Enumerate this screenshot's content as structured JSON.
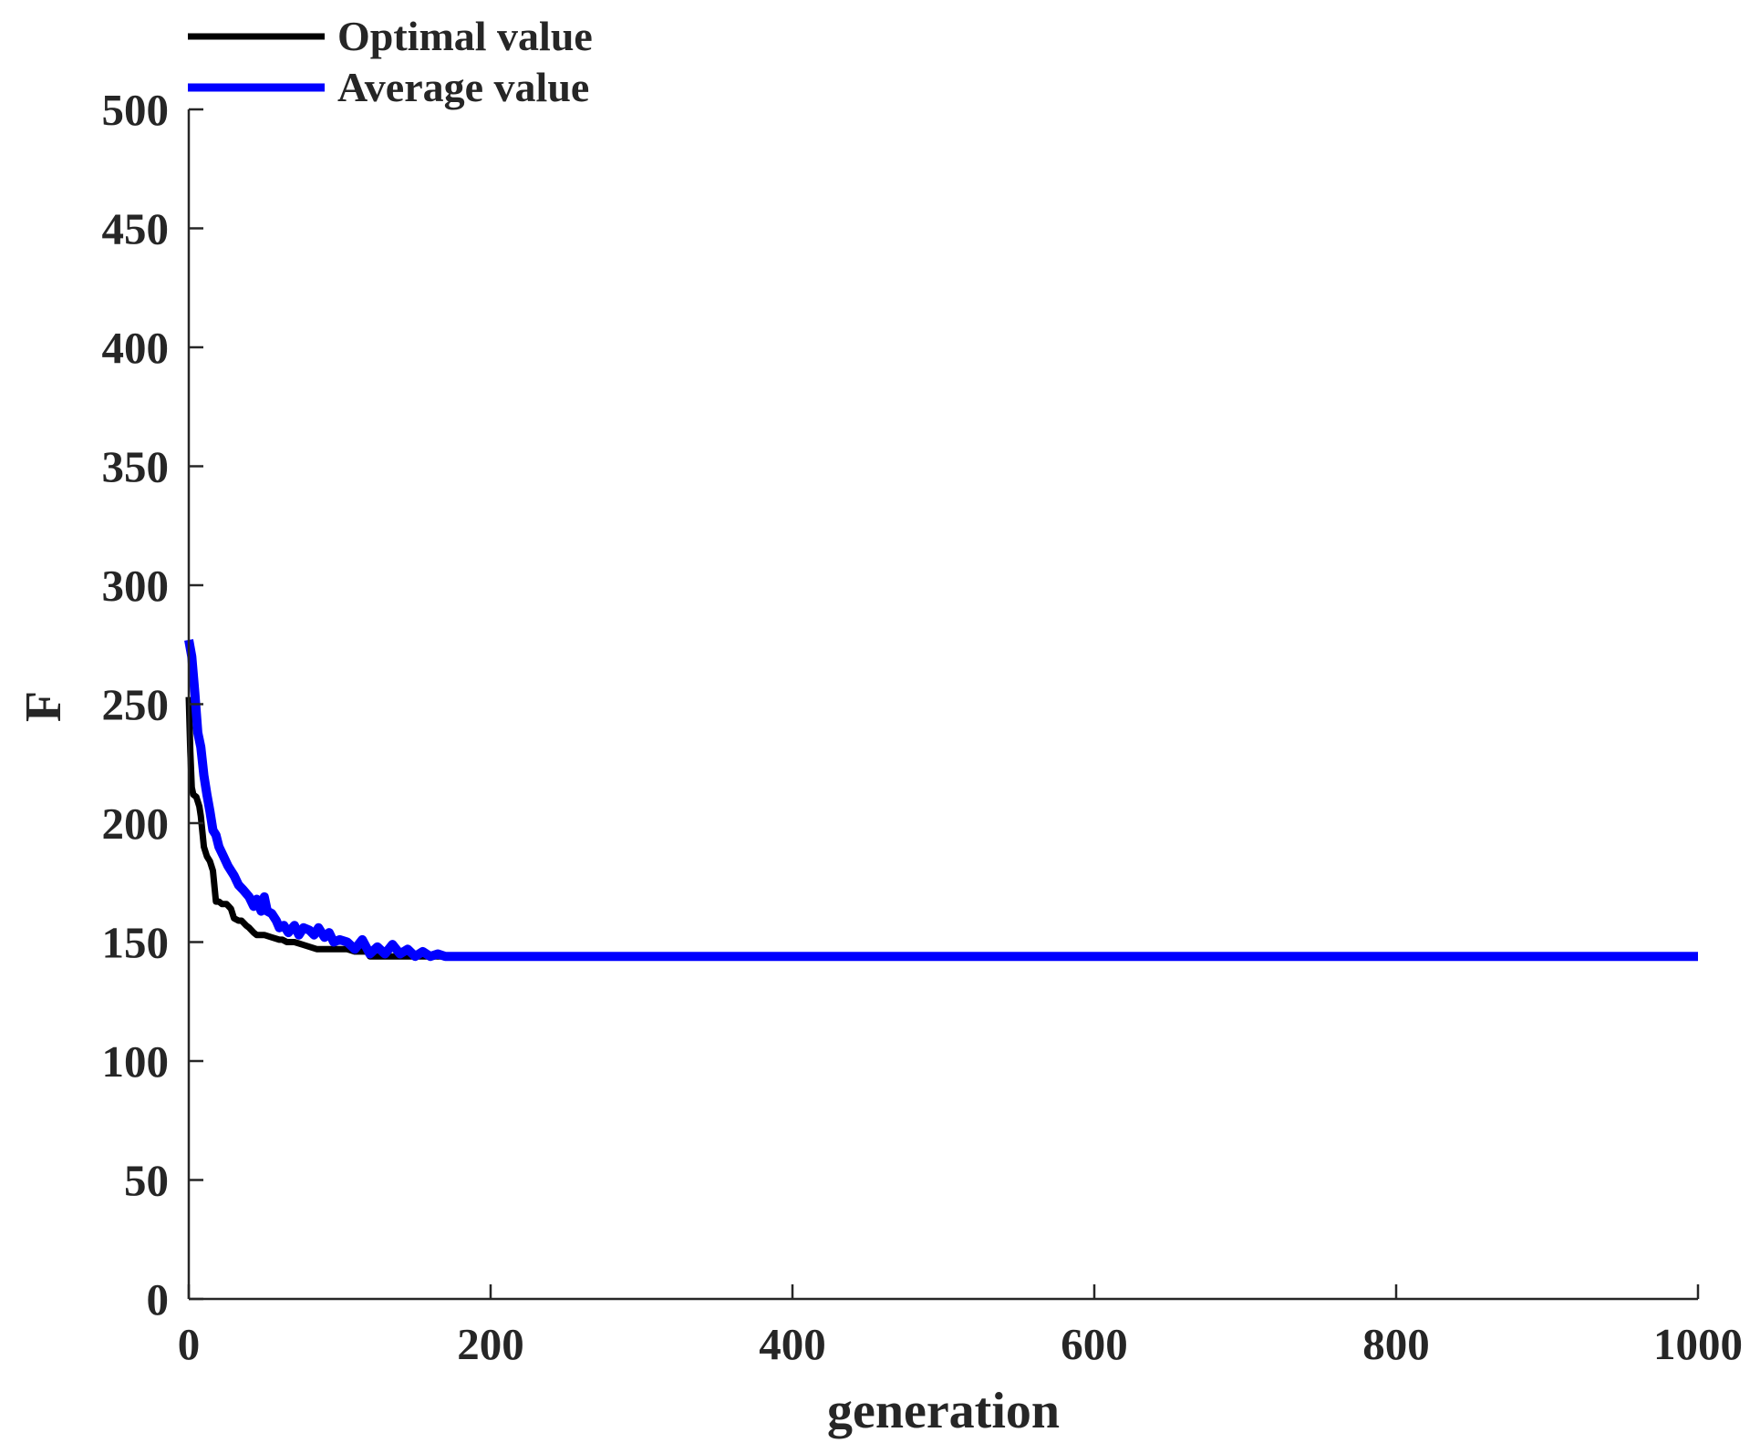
{
  "chart_data": {
    "type": "line",
    "title": "",
    "xlabel": "generation",
    "ylabel": "F",
    "xlim": [
      0,
      1000
    ],
    "ylim": [
      0,
      500
    ],
    "xticks": [
      0,
      200,
      400,
      600,
      800,
      1000
    ],
    "yticks": [
      0,
      50,
      100,
      150,
      200,
      250,
      300,
      350,
      400,
      450,
      500
    ],
    "grid": false,
    "legend": {
      "position": "top-left"
    },
    "colors": {
      "axis": "#262626",
      "optimal": "#000000",
      "average": "#0000ff"
    },
    "series": [
      {
        "name": "Optimal value",
        "color": "#000000",
        "x": [
          0,
          1,
          2,
          3,
          5,
          7,
          8,
          10,
          12,
          14,
          16,
          18,
          20,
          22,
          25,
          28,
          30,
          33,
          35,
          38,
          40,
          43,
          45,
          48,
          50,
          55,
          60,
          62,
          65,
          70,
          75,
          80,
          85,
          90,
          95,
          100,
          105,
          110,
          115,
          118,
          120,
          125,
          130,
          140,
          150,
          160,
          170,
          180,
          200,
          300,
          400,
          500,
          600,
          700,
          800,
          900,
          1000
        ],
        "y": [
          253,
          230,
          215,
          212,
          211,
          207,
          203,
          190,
          186,
          184,
          180,
          167,
          167,
          166,
          166,
          164,
          160,
          159,
          159,
          157,
          156,
          154,
          153,
          153,
          153,
          152,
          151,
          151,
          150,
          150,
          149,
          148,
          147,
          147,
          147,
          147,
          147,
          146,
          146,
          146,
          144,
          144,
          144,
          144,
          144,
          144,
          144,
          144,
          144,
          144,
          144,
          144,
          144,
          144,
          144,
          144,
          144
        ]
      },
      {
        "name": "Average value",
        "color": "#0000ff",
        "x": [
          0,
          2,
          4,
          6,
          8,
          10,
          12,
          14,
          16,
          18,
          20,
          23,
          26,
          30,
          33,
          36,
          40,
          43,
          45,
          48,
          50,
          52,
          55,
          58,
          60,
          63,
          66,
          70,
          73,
          76,
          80,
          83,
          86,
          90,
          93,
          96,
          100,
          105,
          110,
          115,
          120,
          125,
          130,
          135,
          140,
          145,
          150,
          155,
          160,
          165,
          170,
          180,
          200,
          300,
          400,
          500,
          600,
          700,
          800,
          900,
          1000
        ],
        "y": [
          277,
          270,
          255,
          238,
          232,
          220,
          212,
          205,
          197,
          195,
          190,
          186,
          182,
          178,
          174,
          172,
          169,
          165,
          168,
          163,
          169,
          163,
          162,
          159,
          156,
          157,
          154,
          157,
          153,
          156,
          155,
          153,
          156,
          152,
          154,
          150,
          151,
          150,
          147,
          151,
          145,
          148,
          145,
          149,
          145,
          147,
          144,
          146,
          144,
          145,
          144,
          144,
          144,
          144,
          144,
          144,
          144,
          144,
          144,
          144,
          144
        ]
      }
    ]
  }
}
